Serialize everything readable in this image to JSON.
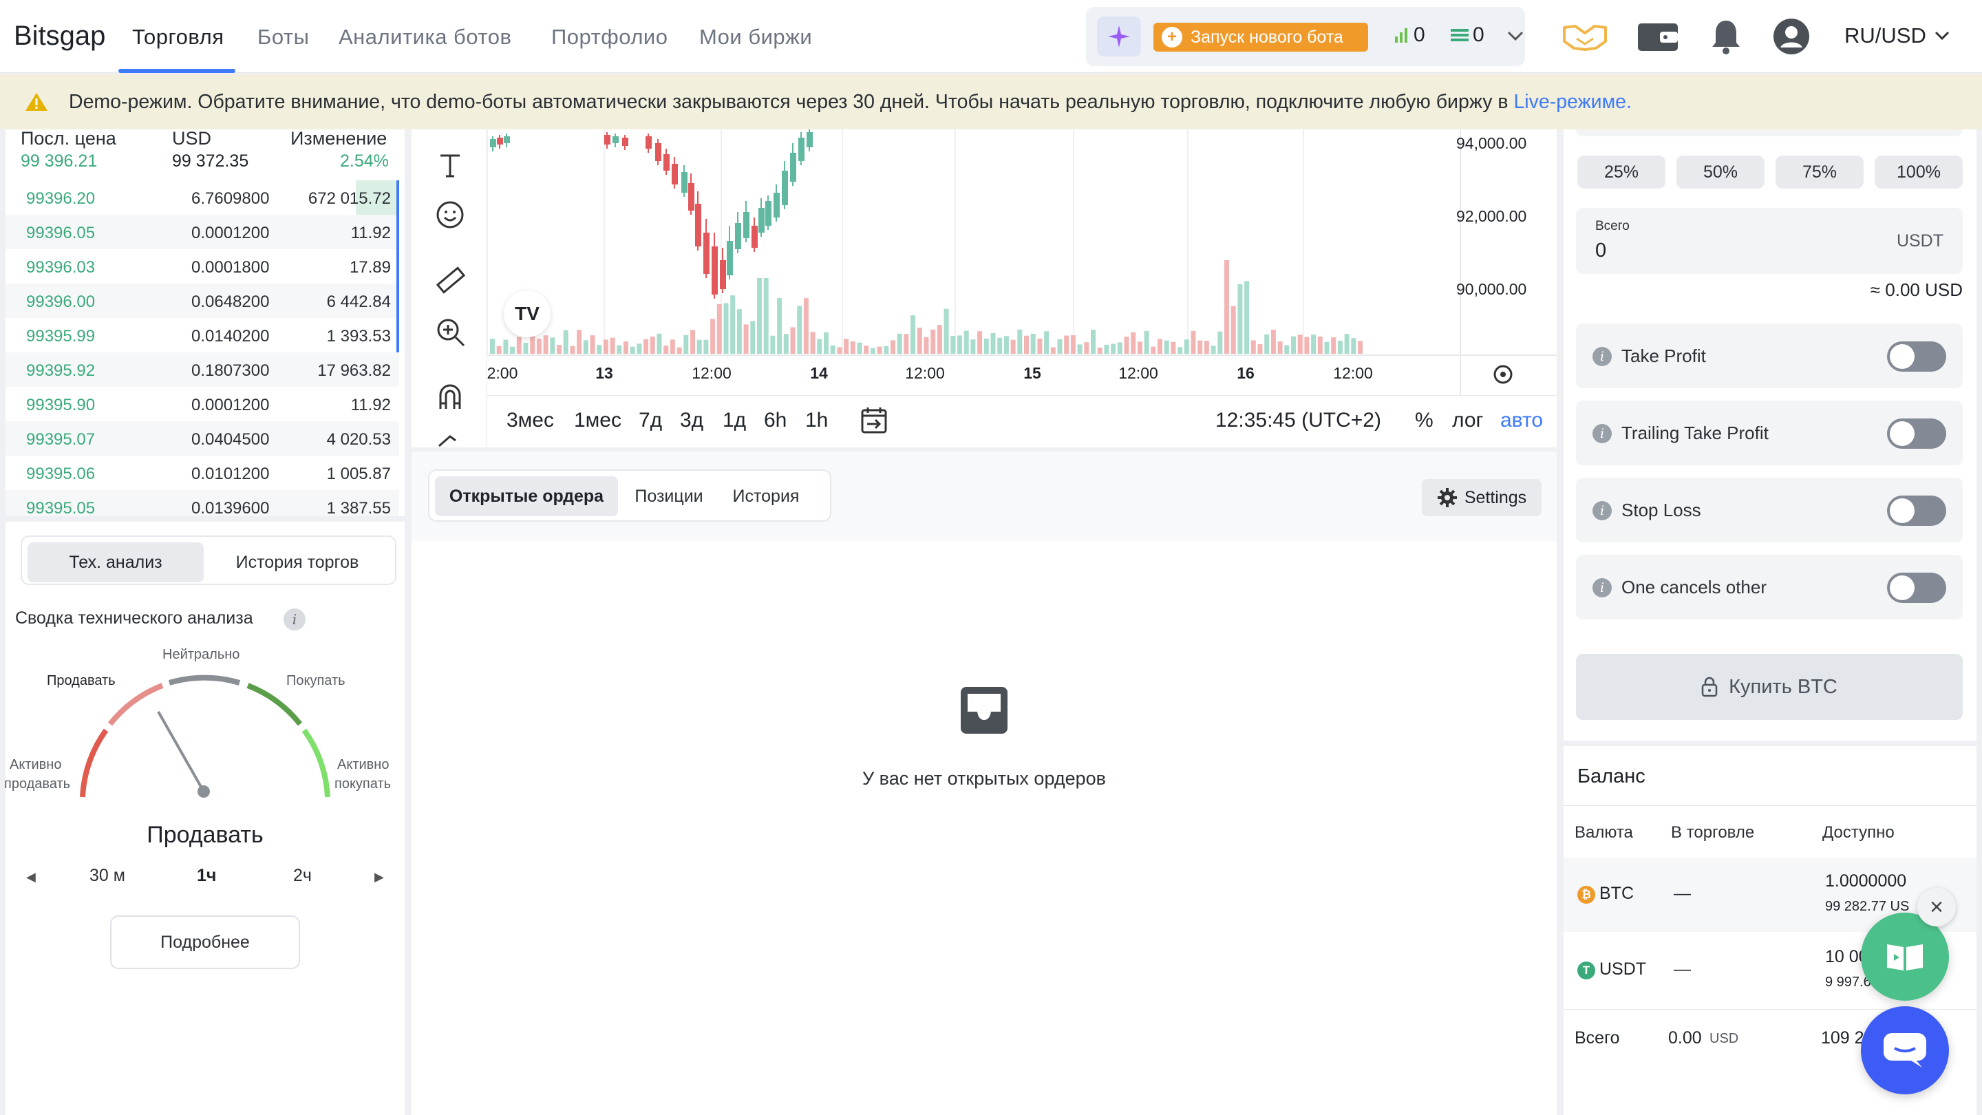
{
  "nav": {
    "logo": "Bitsgap",
    "tabs": [
      "Торговля",
      "Боты",
      "Аналитика ботов",
      "Портфолио",
      "Мои биржи"
    ],
    "launch_bot": "Запуск нового бота",
    "bots_count": "0",
    "orders_count": "0",
    "pair": "RU/USD"
  },
  "banner": {
    "text": "Demo-режим. Обратите внимание, что demo-боты автоматически закрываются через 30 дней. Чтобы начать реальную торговлю, подключите любую биржу в ",
    "link": "Live-режиме."
  },
  "orderbook": {
    "headers": {
      "last_price": "Посл. цена",
      "currency": "USD",
      "change": "Изменение"
    },
    "last_price_value": "99 396.21",
    "usd_value": "99 372.35",
    "change_value": "2.54%",
    "rows": [
      {
        "price": "99396.20",
        "amount": "6.7609800",
        "total": "672 015.72",
        "depth": 0.11
      },
      {
        "price": "99396.05",
        "amount": "0.0001200",
        "total": "11.92",
        "depth": 0
      },
      {
        "price": "99396.03",
        "amount": "0.0001800",
        "total": "17.89",
        "depth": 0
      },
      {
        "price": "99396.00",
        "amount": "0.0648200",
        "total": "6 442.84",
        "depth": 0
      },
      {
        "price": "99395.99",
        "amount": "0.0140200",
        "total": "1 393.53",
        "depth": 0
      },
      {
        "price": "99395.92",
        "amount": "0.1807300",
        "total": "17 963.82",
        "depth": 0
      },
      {
        "price": "99395.90",
        "amount": "0.0001200",
        "total": "11.92",
        "depth": 0
      },
      {
        "price": "99395.07",
        "amount": "0.0404500",
        "total": "4 020.53",
        "depth": 0
      },
      {
        "price": "99395.06",
        "amount": "0.0101200",
        "total": "1 005.87",
        "depth": 0
      },
      {
        "price": "99395.05",
        "amount": "0.0139600",
        "total": "1 387.55",
        "depth": 0
      }
    ]
  },
  "tech": {
    "tabs": [
      "Тех. анализ",
      "История торгов"
    ],
    "summary_title": "Сводка технического анализа",
    "labels": {
      "neutral": "Нейтрально",
      "sell": "Продавать",
      "buy": "Покупать",
      "strong_sell_1": "Активно",
      "strong_sell_2": "продавать",
      "strong_buy_1": "Активно",
      "strong_buy_2": "покупать"
    },
    "result": "Продавать",
    "intervals": [
      "30 м",
      "1ч",
      "2ч"
    ],
    "active_interval": "1ч",
    "details_button": "Подробнее"
  },
  "chart": {
    "price_ticks": [
      "94,000.00",
      "92,000.00",
      "90,000.00"
    ],
    "time_ticks": [
      "2:00",
      "13",
      "12:00",
      "14",
      "12:00",
      "15",
      "12:00",
      "16",
      "12:00"
    ],
    "timeframes": [
      "3мес",
      "1мес",
      "7д",
      "3д",
      "1д",
      "6h",
      "1h"
    ],
    "clock": "12:35:45 (UTC+2)",
    "opt_percent": "%",
    "opt_log": "лог",
    "opt_auto": "авто",
    "colors": {
      "up": "#5fb89f",
      "down": "#e2575a",
      "up_vol": "#a8dccd",
      "down_vol": "#f2b5b4"
    }
  },
  "orders": {
    "tabs": [
      "Открытые ордера",
      "Позиции",
      "История"
    ],
    "settings": "Settings",
    "empty": "У вас нет открытых ордеров"
  },
  "trade": {
    "percents": [
      "25%",
      "50%",
      "75%",
      "100%"
    ],
    "total_label": "Всего",
    "total_value": "0",
    "total_currency": "USDT",
    "approx": "≈ 0.00 USD",
    "toggles": [
      "Take Profit",
      "Trailing Take Profit",
      "Stop Loss",
      "One cancels other"
    ],
    "buy_button": "Купить BTC"
  },
  "balance": {
    "title": "Баланс",
    "headers": [
      "Валюта",
      "В торговле",
      "Доступно"
    ],
    "rows": [
      {
        "coin": "BTC",
        "in_trade": "—",
        "available": "1.0000000",
        "available_usd": "99 282.77 US"
      },
      {
        "coin": "USDT",
        "in_trade": "—",
        "available": "10 00",
        "available_usd": "9 997.60"
      }
    ],
    "total_label": "Всего",
    "total_value": "0.00",
    "total_currency": "USD",
    "total_available": "109 2"
  }
}
